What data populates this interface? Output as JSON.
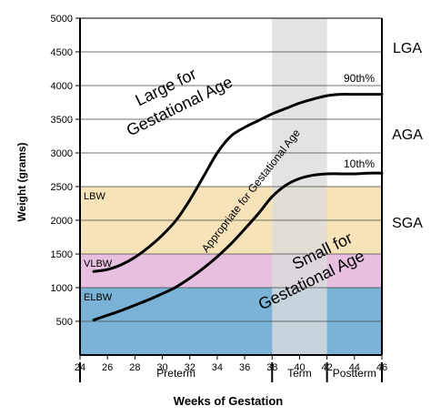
{
  "chart_data": {
    "type": "line",
    "xlabel": "Weeks of Gestation",
    "ylabel": "Weight (grams)",
    "xlim": [
      24,
      46
    ],
    "ylim": [
      0,
      5000
    ],
    "x_ticks": [
      24,
      26,
      28,
      30,
      32,
      34,
      36,
      38,
      40,
      42,
      44,
      46
    ],
    "y_ticks": [
      500,
      1000,
      1500,
      2000,
      2500,
      3000,
      3500,
      4000,
      4500,
      5000
    ],
    "grid": "horizontal",
    "bands": [
      {
        "label": "LBW",
        "y0": 1500,
        "y1": 2500,
        "color": "#f7e3b9"
      },
      {
        "label": "VLBW",
        "y0": 1000,
        "y1": 1500,
        "color": "#e7bfe0"
      },
      {
        "label": "ELBW",
        "y0": 0,
        "y1": 1000,
        "color": "#7bb3d6"
      }
    ],
    "term_shading": {
      "x0": 38,
      "x1": 42,
      "color": "#dcdcdc"
    },
    "periods": [
      {
        "label": "Preterm",
        "x0": 24,
        "x1": 38
      },
      {
        "label": "Term",
        "x0": 38,
        "x1": 42
      },
      {
        "label": "Postterm",
        "x0": 42,
        "x1": 46
      }
    ],
    "series": [
      {
        "name": "90th%",
        "x": [
          25,
          26,
          27,
          28,
          29,
          30,
          31,
          32,
          33,
          34,
          35,
          36,
          37,
          38,
          39,
          40,
          41,
          42,
          43,
          44,
          45,
          46
        ],
        "values": [
          1240,
          1270,
          1340,
          1450,
          1600,
          1780,
          2000,
          2300,
          2650,
          3000,
          3250,
          3380,
          3480,
          3580,
          3660,
          3740,
          3800,
          3850,
          3870,
          3870,
          3870,
          3870
        ]
      },
      {
        "name": "10th%",
        "x": [
          25,
          26,
          27,
          28,
          29,
          30,
          31,
          32,
          33,
          34,
          35,
          36,
          37,
          38,
          39,
          40,
          41,
          42,
          43,
          44,
          45,
          46
        ],
        "values": [
          520,
          590,
          660,
          740,
          820,
          910,
          1010,
          1140,
          1290,
          1460,
          1650,
          1870,
          2100,
          2350,
          2520,
          2620,
          2670,
          2690,
          2690,
          2690,
          2700,
          2700
        ]
      }
    ],
    "annotations": [
      {
        "text": "Large for Gestational Age",
        "region": "upper"
      },
      {
        "text": "Appropriate for Gestational Age",
        "region": "between curves"
      },
      {
        "text": "Small for Gestational Age",
        "region": "lower"
      }
    ],
    "right_labels": [
      "LGA",
      "AGA",
      "SGA"
    ]
  },
  "labels": {
    "lga_big_line1": "Large for",
    "lga_big_line2": "Gestational Age",
    "aga_text": "Appropriate for Gestational Age",
    "sga_line1": "Small for",
    "sga_line2": "Gestational Age",
    "lga": "LGA",
    "aga": "AGA",
    "sga": "SGA",
    "p90": "90th%",
    "p10": "10th%"
  }
}
